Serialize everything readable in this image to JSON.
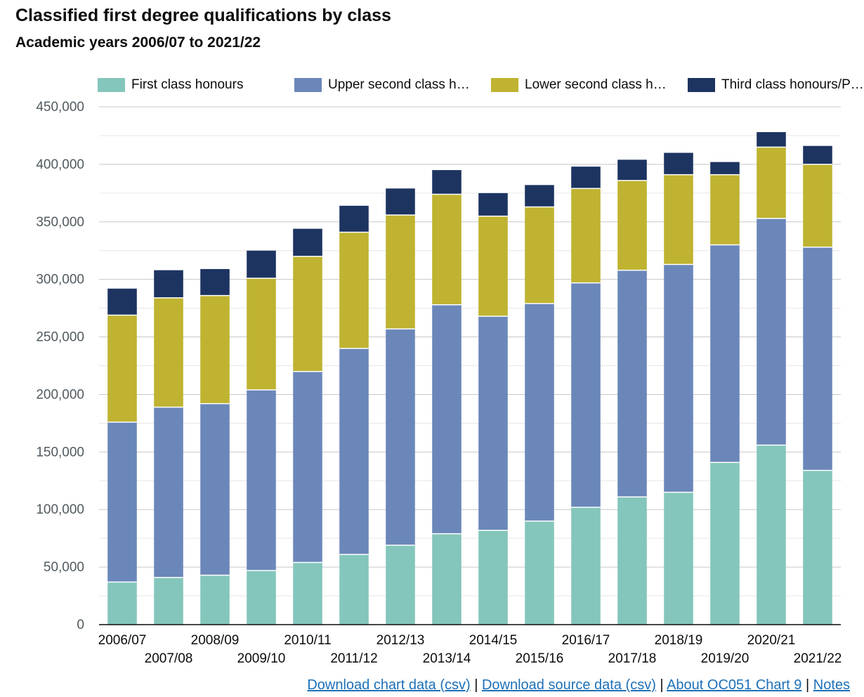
{
  "chart_data": {
    "type": "bar",
    "stacked": true,
    "title": "Classified first degree qualifications by class",
    "subtitle": "Academic years 2006/07 to 2021/22",
    "xlabel": "",
    "ylabel": "",
    "ylim": [
      0,
      450000
    ],
    "yticks": [
      "0",
      "50,000",
      "100,000",
      "150,000",
      "200,000",
      "250,000",
      "300,000",
      "350,000",
      "400,000",
      "450,000"
    ],
    "ytick_values": [
      0,
      50000,
      100000,
      150000,
      200000,
      250000,
      300000,
      350000,
      400000,
      450000
    ],
    "grid": true,
    "legend_position": "top",
    "categories": [
      "2006/07",
      "2007/08",
      "2008/09",
      "2009/10",
      "2010/11",
      "2011/12",
      "2012/13",
      "2013/14",
      "2014/15",
      "2015/16",
      "2016/17",
      "2017/18",
      "2018/19",
      "2019/20",
      "2020/21",
      "2021/22"
    ],
    "series": [
      {
        "name": "First class honours",
        "legend_label": "First class honours",
        "color": "#84c6bb",
        "values": [
          37000,
          41000,
          43000,
          47000,
          54000,
          61000,
          69000,
          79000,
          82000,
          90000,
          102000,
          111000,
          115000,
          141000,
          156000,
          134000
        ]
      },
      {
        "name": "Upper second class honours",
        "legend_label": "Upper second class h…",
        "color": "#6b87ba",
        "values": [
          139000,
          148000,
          149000,
          157000,
          166000,
          179000,
          188000,
          199000,
          186000,
          189000,
          195000,
          197000,
          198000,
          189000,
          197000,
          194000
        ]
      },
      {
        "name": "Lower second class honours",
        "legend_label": "Lower second class h…",
        "color": "#bfb331",
        "values": [
          93000,
          95000,
          94000,
          97000,
          100000,
          101000,
          99000,
          96000,
          87000,
          84000,
          82000,
          78000,
          78000,
          61000,
          62000,
          72000
        ]
      },
      {
        "name": "Third class honours/Pass",
        "legend_label": "Third class honours/P…",
        "color": "#1d3461",
        "values": [
          23000,
          24000,
          23000,
          24000,
          24000,
          23000,
          23000,
          21000,
          20000,
          19000,
          19000,
          18000,
          19000,
          11000,
          13000,
          16000
        ]
      }
    ]
  },
  "footer": {
    "link1": "Download chart data (csv)",
    "link2": "Download source data (csv)",
    "link3": "About OC051 Chart 9",
    "link4": "Notes",
    "separator": "|"
  }
}
